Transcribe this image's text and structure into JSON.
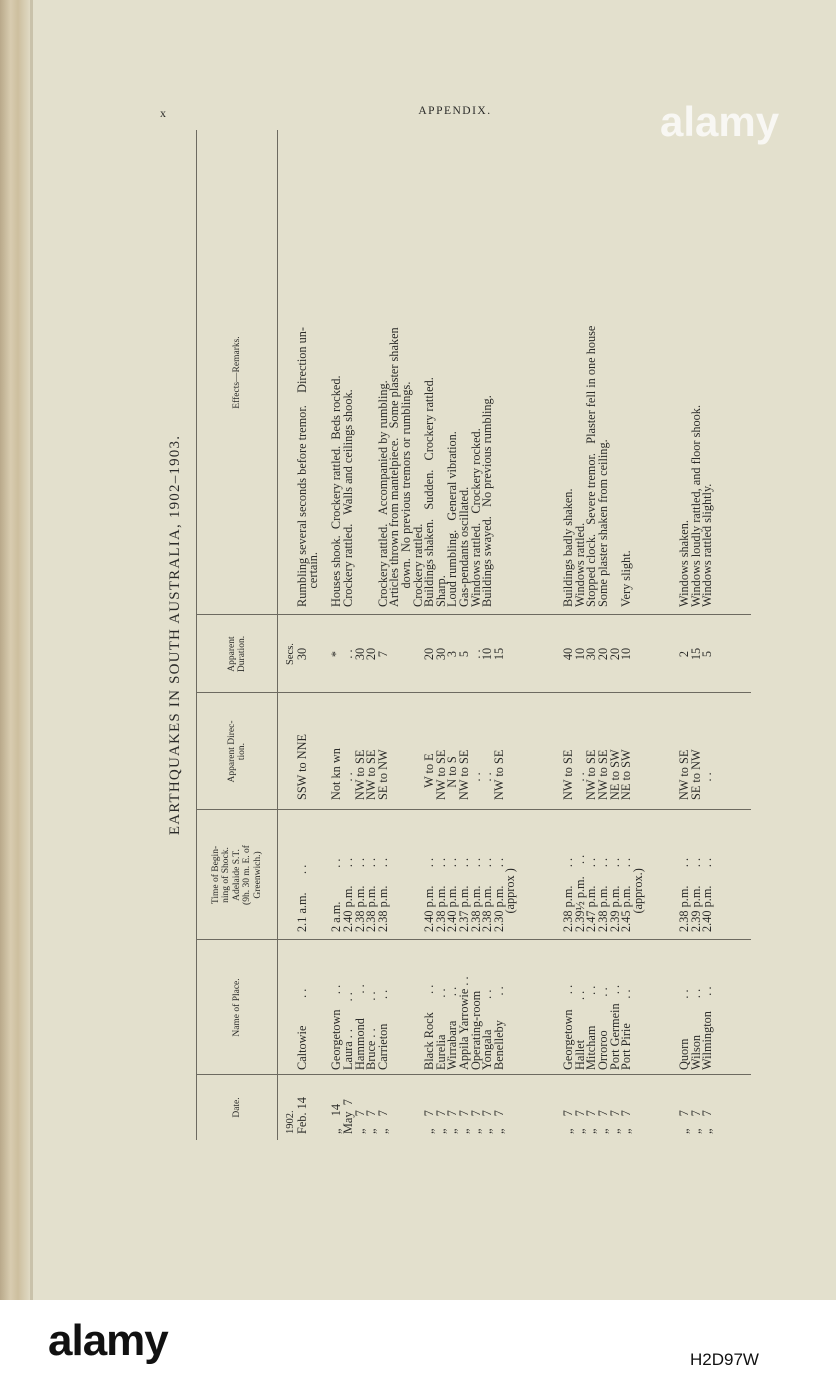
{
  "page": {
    "folio": "x",
    "running_head": "APPENDIX."
  },
  "table": {
    "title": "EARTHQUAKES IN SOUTH AUSTRALIA, 1902–1903.",
    "headers": {
      "date": "Date.",
      "place": "Name of Place.",
      "time": "Time of Begin-\nning of Shock.\nAdelaide S.T.\n(9h. 30 m. E. of\nGreenwich.)",
      "direction": "Apparent Direc-\ntion.",
      "duration": "Apparent\nDuration.",
      "remarks": "Effects—Remarks."
    },
    "columns": {
      "date": [
        "1902.",
        "Feb. 14",
        "",
        "",
        "„    14",
        "May  7",
        "„    7",
        "„    7",
        "„    7",
        "",
        "",
        "",
        "„    7",
        "„    7",
        "„    7",
        "„    7",
        "„    7",
        "„    7",
        "„    7",
        "",
        "",
        "",
        "",
        "",
        "„    7",
        "„    7",
        "„    7",
        "„    7",
        "„    7",
        "„    7",
        "",
        "",
        "",
        "",
        "„    7",
        "„    7",
        "„    7"
      ],
      "place": [
        "",
        "Caltowie         . .",
        "",
        "",
        "Georgetown     . .",
        "Laura . .         . .",
        "Hammond        . .",
        "Bruce . .         . .",
        "Carrieton        . .",
        "",
        "",
        "",
        "Black Rock      . .",
        "Eurelia            . .",
        "Wirrabara        . .",
        "Appila Yarrowie . .",
        "Operating-room",
        "Yongala          . .",
        "Benelleby        . .",
        "",
        "",
        "",
        "",
        "",
        "Georgetown     . .",
        "Hallet             . .",
        "Mitcham          . .",
        "Orroroo           . .",
        "Port Germein   . .",
        "Port Pirie        . .",
        "",
        "",
        "",
        "",
        "Quorn             . .",
        "Wilson            . .",
        "Wilmington     . ."
      ],
      "time": [
        "",
        "2.1 a.m.      . .",
        "",
        "",
        "2 a.m.           . .",
        "2.40 p.m.      . .",
        "2.38 p.m.      . .",
        "2.38 p.m.      . .",
        "2.38 p.m.      . .",
        "",
        "",
        "",
        "2.40 p.m.      . .",
        "2.38 p.m.      . .",
        "2.40 p.m.      . .",
        "2.37 p.m.      . .",
        "2.38 p.m.      . .",
        "2.38 p.m.      . .",
        "2.30 p.m.      . .",
        "      (approx )",
        "",
        "",
        "",
        "",
        "2.38 p.m.      . .",
        "2.39½ p.m.    . .",
        "2.47 p.m.      . .",
        "2.38 p.m.      . .",
        "2.39 p.m.      . .",
        "2.45 p.m.      . .",
        "      (approx.)",
        "",
        "",
        "",
        "2.38 p.m.      . .",
        "2.39 p.m.      . .",
        "2.40 p.m.      . ."
      ],
      "direction": [
        "",
        "SSW to NNE",
        "",
        "",
        "Not kn wn",
        "      . .",
        "NW to SE",
        "NW to SE",
        "SE to NW",
        "",
        "",
        "",
        "    W to E",
        "NW to SE",
        "    N to S",
        "NW to SE",
        "      . .",
        "      . .",
        "NW to SE",
        "",
        "",
        "",
        "",
        "",
        "NW to SE",
        "      . .",
        "NW to SE",
        "NW to SE",
        "NE to SW",
        "NE to SW",
        "",
        "",
        "",
        "",
        "NW to SE",
        "SE to NW",
        "      . ."
      ],
      "duration": [
        "Secs.",
        "30",
        "",
        "",
        "*",
        ". .",
        "30",
        "20",
        "7",
        "",
        "",
        "",
        "20",
        "30",
        "3",
        "5",
        ". .",
        "10",
        "15",
        "",
        "",
        "",
        "",
        "",
        "40",
        "10",
        "30",
        "20",
        "20",
        "10",
        "",
        "",
        "",
        "",
        "2",
        "15",
        "5"
      ],
      "remarks": [
        "",
        "Rumbling several seconds before tremor.    Direction un-",
        "      certain.",
        "",
        "Houses shook.  Crockery rattled.  Beds rocked.",
        "Crockery rattled.   Walls and ceilings shook.",
        "",
        "",
        "Crockery rattled.   Accompanied by rumbling.",
        "Articles thrown from mantelpiece.   Some plaster shaken",
        "      down.  No previous tremors or rumblings.",
        "Crockery rattled.",
        "Buildings shaken.   Sudden.   Crockery rattled.",
        "Sharp.",
        "Loud rumbling.   General vibration.",
        "Gas-pendants oscillated.",
        "Windows rattled.   Crockery rocked.",
        "Buildings swayed.   No previous rumbling.",
        "",
        "",
        "",
        "",
        "",
        "",
        "Buildings badly shaken.",
        "Windows rattled.",
        "Stopped clock.   Severe tremor.   Plaster fell in one house",
        "Some plaster shaken from ceiling.",
        "",
        "Very slight.",
        "",
        "",
        "",
        "",
        "Windows shaken.",
        "Windows loudly rattled, and floor shook.",
        "Windows rattled slightly."
      ]
    }
  },
  "watermark": {
    "logo": "alamy",
    "image_code": "H2D97W"
  }
}
